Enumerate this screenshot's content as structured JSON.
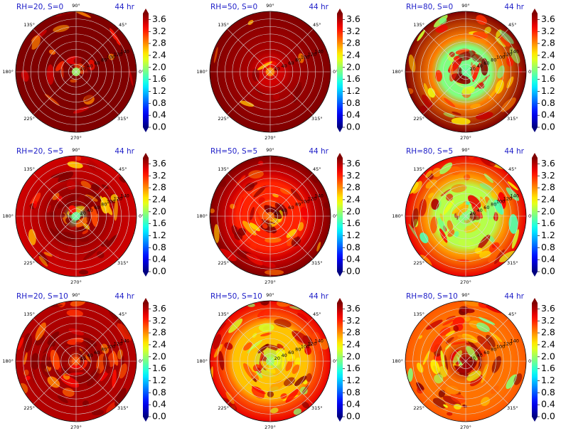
{
  "figure": {
    "colorbar": {
      "ticks": [
        "0.0",
        "0.4",
        "0.8",
        "1.2",
        "1.6",
        "2.0",
        "2.4",
        "2.8",
        "3.2",
        "3.6"
      ],
      "range": [
        0.0,
        3.8
      ],
      "colormap": "jet",
      "extend": "both"
    },
    "polar_angle_labels": [
      "0°",
      "45°",
      "90°",
      "135°",
      "180°",
      "225°",
      "270°",
      "315°"
    ]
  },
  "chart_data": [
    {
      "type": "heatmap",
      "projection": "polar",
      "title_left": "RH=20, S=0",
      "title_right": "44 hr",
      "radial_tick_labels": [
        "20",
        "40",
        "60",
        "80",
        "100",
        "120",
        "140",
        "160"
      ],
      "center_value": 2.0,
      "core_value": 3.8,
      "background_value": 3.8,
      "core_extent": 0.1,
      "patch_density": 0.8
    },
    {
      "type": "heatmap",
      "projection": "polar",
      "title_left": "RH=50, S=0",
      "title_right": "44 hr",
      "radial_tick_labels": [
        "20",
        "40",
        "60",
        "80",
        "100",
        "120",
        "140",
        "160"
      ],
      "center_value": 2.8,
      "core_value": 3.5,
      "background_value": 3.8,
      "core_extent": 0.2,
      "patch_density": 0.2
    },
    {
      "type": "heatmap",
      "projection": "polar",
      "title_left": "RH=80, S=0",
      "title_right": "44 hr",
      "radial_tick_labels": [
        "20",
        "40",
        "60",
        "80",
        "100",
        "120",
        "140",
        "160"
      ],
      "center_value": 1.8,
      "core_value": 1.9,
      "background_value": 3.8,
      "core_extent": 0.42,
      "patch_density": 1.0
    },
    {
      "type": "heatmap",
      "projection": "polar",
      "title_left": "RH=20, S=5",
      "title_right": "44 hr",
      "radial_tick_labels": [
        "20",
        "40",
        "60",
        "80",
        "100",
        "120",
        "140",
        "160"
      ],
      "center_value": 1.8,
      "core_value": 3.7,
      "background_value": 3.5,
      "core_extent": 0.45,
      "patch_density": 1.1
    },
    {
      "type": "heatmap",
      "projection": "polar",
      "title_left": "RH=50, S=5",
      "title_right": "44 hr",
      "radial_tick_labels": [
        "20",
        "40",
        "60",
        "80",
        "100",
        "120",
        "140",
        "160"
      ],
      "center_value": 2.9,
      "core_value": 3.2,
      "background_value": 3.8,
      "core_extent": 0.55,
      "patch_density": 1.0
    },
    {
      "type": "heatmap",
      "projection": "polar",
      "title_left": "RH=80, S=5",
      "title_right": "44 hr",
      "radial_tick_labels": [
        "20",
        "40",
        "60",
        "80",
        "100",
        "120",
        "140",
        "160"
      ],
      "center_value": 1.9,
      "core_value": 2.1,
      "background_value": 3.4,
      "core_extent": 0.5,
      "patch_density": 1.2
    },
    {
      "type": "heatmap",
      "projection": "polar",
      "title_left": "RH=20, S=10",
      "title_right": "44 hr",
      "radial_tick_labels": [
        "20",
        "40",
        "60",
        "80",
        "100",
        "120",
        "140",
        "160"
      ],
      "center_value": 3.0,
      "core_value": 3.7,
      "background_value": 3.6,
      "core_extent": 0.35,
      "patch_density": 1.3
    },
    {
      "type": "heatmap",
      "projection": "polar",
      "title_left": "RH=50, S=10",
      "title_right": "44 hr",
      "radial_tick_labels": [
        "20",
        "40",
        "60",
        "80",
        "100",
        "120",
        "140",
        "160"
      ],
      "center_value": 2.0,
      "core_value": 2.6,
      "background_value": 3.4,
      "core_extent": 0.6,
      "patch_density": 1.2
    },
    {
      "type": "heatmap",
      "projection": "polar",
      "title_left": "RH=80, S=10",
      "title_right": "44 hr",
      "radial_tick_labels": [
        "20",
        "40",
        "60",
        "80",
        "100",
        "120",
        "140",
        "160"
      ],
      "center_value": 3.7,
      "core_value": 2.9,
      "background_value": 3.0,
      "core_extent": 0.75,
      "patch_density": 1.4
    }
  ]
}
